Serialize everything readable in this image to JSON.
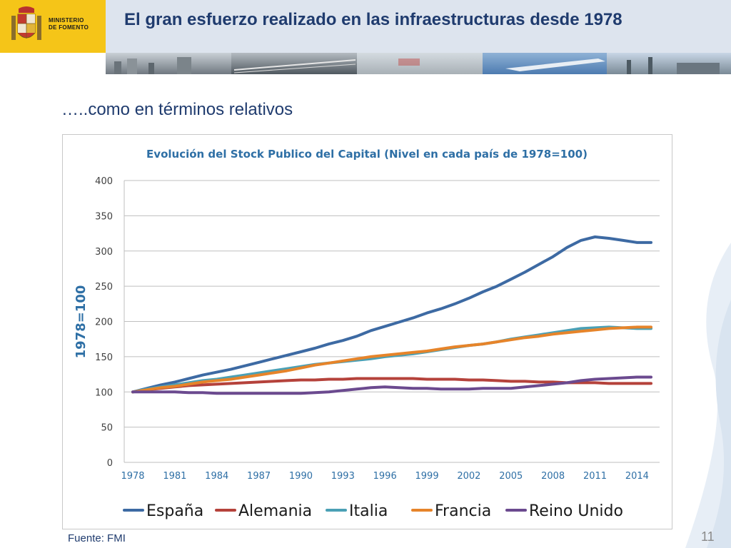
{
  "header": {
    "ministry_line1": "MINISTERIO",
    "ministry_line2": "DE FOMENTO",
    "title": "El gran esfuerzo realizado en las infraestructuras desde 1978"
  },
  "subtitle": "…..como en términos relativos",
  "source": "Fuente: FMI",
  "page_number": "11",
  "colors": {
    "header_yellow": "#f5c518",
    "title_blue": "#1f3b6e",
    "chart_title": "#2e6fa5"
  },
  "chart_data": {
    "type": "line",
    "title": "Evolución del Stock Publico del Capital (Nivel en cada país de 1978=100)",
    "xlabel": "",
    "ylabel": "1978=100",
    "ylim": [
      0,
      400
    ],
    "yticks": [
      0,
      50,
      100,
      150,
      200,
      250,
      300,
      350,
      400
    ],
    "xtick_labels": [
      "1978",
      "1981",
      "1984",
      "1987",
      "1990",
      "1993",
      "1996",
      "1999",
      "2002",
      "2005",
      "2008",
      "2011",
      "2014"
    ],
    "grid": true,
    "legend_position": "bottom",
    "x": [
      1978,
      1979,
      1980,
      1981,
      1982,
      1983,
      1984,
      1985,
      1986,
      1987,
      1988,
      1989,
      1990,
      1991,
      1992,
      1993,
      1994,
      1995,
      1996,
      1997,
      1998,
      1999,
      2000,
      2001,
      2002,
      2003,
      2004,
      2005,
      2006,
      2007,
      2008,
      2009,
      2010,
      2011,
      2012,
      2013,
      2014,
      2015
    ],
    "series": [
      {
        "name": "España",
        "color": "#3d6aa3",
        "values": [
          100,
          105,
          110,
          114,
          119,
          124,
          128,
          132,
          137,
          142,
          147,
          152,
          157,
          162,
          168,
          173,
          179,
          187,
          193,
          199,
          205,
          212,
          218,
          225,
          233,
          242,
          250,
          260,
          270,
          281,
          292,
          305,
          315,
          320,
          318,
          315,
          312,
          312
        ]
      },
      {
        "name": "Alemania",
        "color": "#b5423b",
        "values": [
          100,
          103,
          105,
          107,
          109,
          110,
          111,
          112,
          113,
          114,
          115,
          116,
          117,
          117,
          118,
          118,
          119,
          119,
          119,
          119,
          119,
          118,
          118,
          118,
          117,
          117,
          116,
          115,
          115,
          114,
          114,
          113,
          113,
          113,
          112,
          112,
          112,
          112
        ]
      },
      {
        "name": "Italia",
        "color": "#4ba0b5",
        "values": [
          100,
          104,
          107,
          110,
          113,
          116,
          118,
          121,
          124,
          127,
          130,
          133,
          136,
          139,
          141,
          143,
          145,
          147,
          150,
          152,
          154,
          157,
          160,
          163,
          166,
          168,
          171,
          175,
          178,
          181,
          184,
          187,
          190,
          191,
          192,
          191,
          190,
          190
        ]
      },
      {
        "name": "Francia",
        "color": "#e6842a",
        "values": [
          100,
          103,
          106,
          108,
          111,
          114,
          116,
          118,
          121,
          124,
          127,
          130,
          134,
          138,
          141,
          144,
          147,
          150,
          152,
          154,
          156,
          158,
          161,
          164,
          166,
          168,
          171,
          174,
          177,
          179,
          182,
          184,
          186,
          188,
          190,
          191,
          192,
          192
        ]
      },
      {
        "name": "Reino Unido",
        "color": "#6b4a8f",
        "values": [
          100,
          100,
          100,
          100,
          99,
          99,
          98,
          98,
          98,
          98,
          98,
          98,
          98,
          99,
          100,
          102,
          104,
          106,
          107,
          106,
          105,
          105,
          104,
          104,
          104,
          105,
          105,
          105,
          107,
          109,
          111,
          113,
          116,
          118,
          119,
          120,
          121,
          121
        ]
      }
    ]
  }
}
